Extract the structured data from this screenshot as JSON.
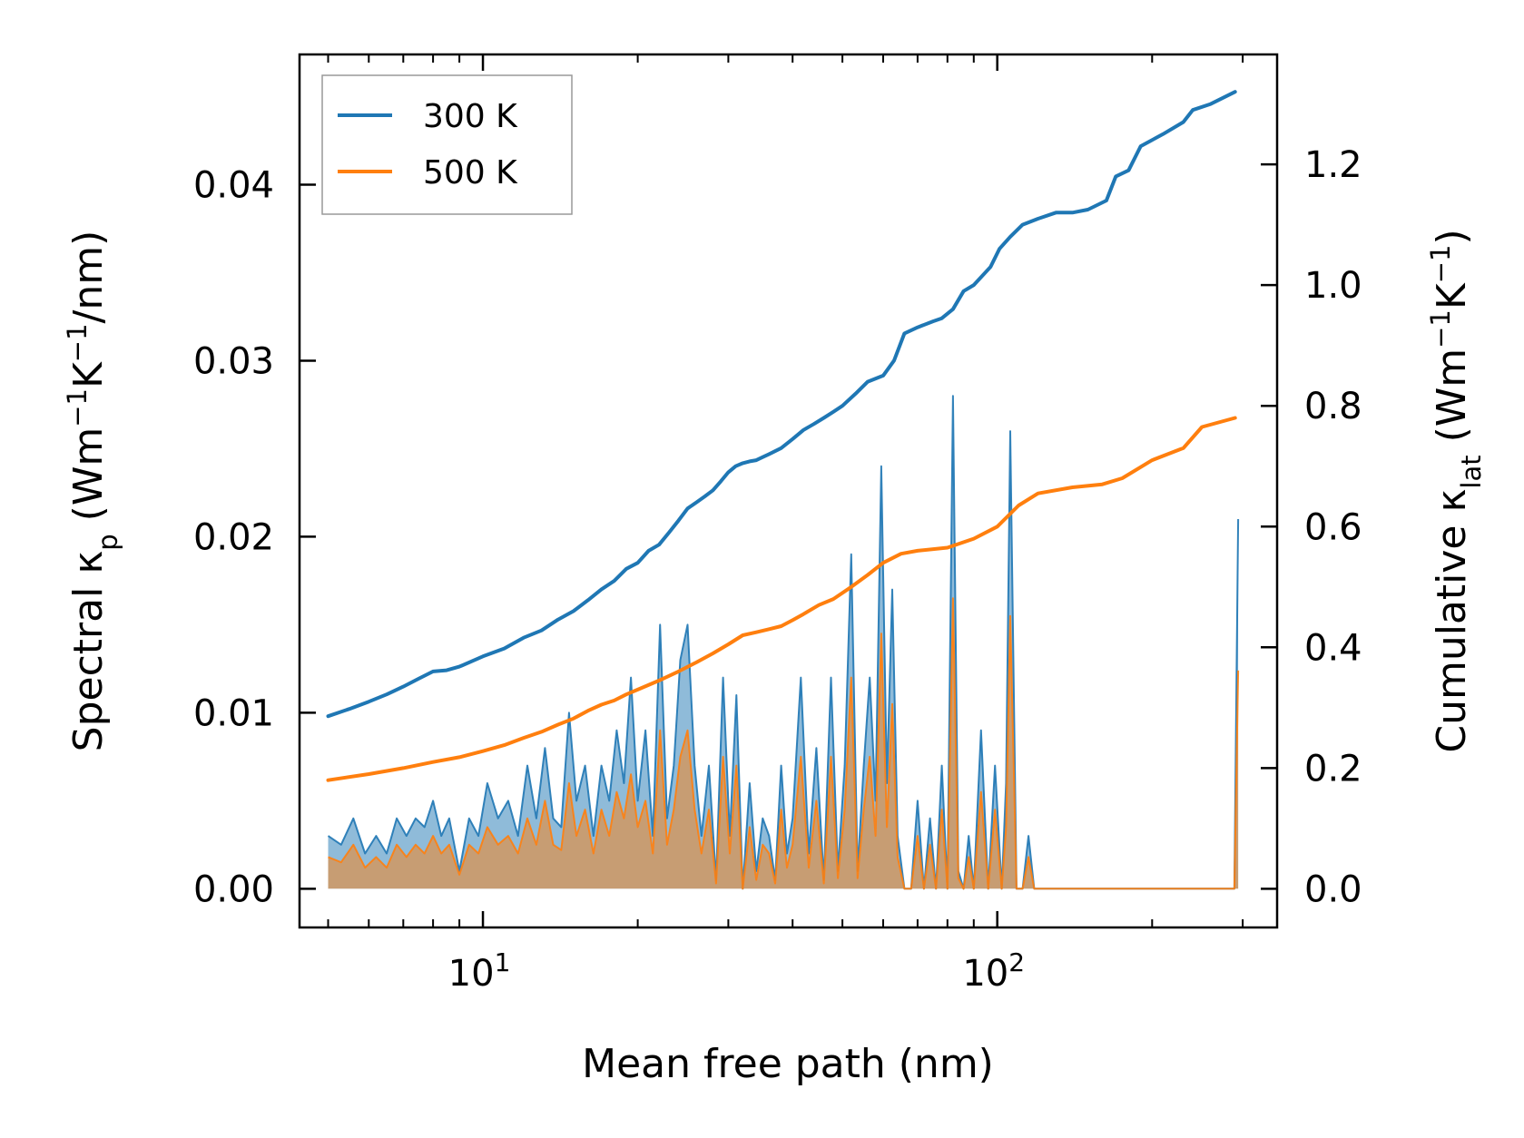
{
  "chart_data": {
    "type": "line",
    "xlabel": "Mean free path (nm)",
    "ylabel_left": {
      "prefix": "Spectral κ",
      "sub": "p",
      "suffix": " (Wm",
      "sup1": "−1",
      "mid": "K",
      "sup2": "−1",
      "end": "/nm)"
    },
    "ylabel_right": {
      "prefix": "Cumulative κ",
      "sub": "lat",
      "suffix": " (Wm",
      "sup1": "−1",
      "mid": "K",
      "sup2": "−1",
      "end": ")"
    },
    "x_scale": "log",
    "xlim": [
      4.4,
      350
    ],
    "x_ticks": [
      {
        "value": 10,
        "base": "10",
        "exp": "1"
      },
      {
        "value": 100,
        "base": "10",
        "exp": "2"
      }
    ],
    "ylim_left": [
      -0.0022,
      0.0474
    ],
    "yticks_left": [
      {
        "value": 0.0,
        "label": "0.00"
      },
      {
        "value": 0.01,
        "label": "0.01"
      },
      {
        "value": 0.02,
        "label": "0.02"
      },
      {
        "value": 0.03,
        "label": "0.03"
      },
      {
        "value": 0.04,
        "label": "0.04"
      }
    ],
    "ylim_right": [
      -0.064,
      1.382
    ],
    "yticks_right": [
      {
        "value": 0.0,
        "label": "0.0"
      },
      {
        "value": 0.2,
        "label": "0.2"
      },
      {
        "value": 0.4,
        "label": "0.4"
      },
      {
        "value": 0.6,
        "label": "0.6"
      },
      {
        "value": 0.8,
        "label": "0.8"
      },
      {
        "value": 1.0,
        "label": "1.0"
      },
      {
        "value": 1.2,
        "label": "1.2"
      }
    ],
    "legend": {
      "position": "top-left",
      "entries": [
        {
          "label": "300 K",
          "color": "#1f77b4"
        },
        {
          "label": "500 K",
          "color": "#ff7f0e"
        }
      ]
    },
    "series": [
      {
        "name": "300 K cumulative",
        "axis": "right",
        "color": "#1f77b4",
        "x": [
          5.0,
          5.5,
          6.0,
          6.5,
          7.0,
          7.5,
          8.0,
          8.5,
          9.0,
          10.0,
          11.0,
          12.0,
          13.0,
          14.0,
          15.0,
          16.0,
          17.0,
          18.0,
          19.0,
          20.0,
          21.0,
          22.0,
          23.0,
          24.0,
          25.0,
          26.0,
          27.0,
          28.0,
          29.0,
          30.0,
          31.0,
          32.0,
          33.0,
          34.0,
          35.0,
          36.0,
          38.0,
          40.0,
          42.0,
          44.0,
          46.0,
          48.0,
          50.0,
          53.0,
          56.0,
          60.0,
          63.0,
          66.0,
          70.0,
          75.0,
          78.0,
          82.0,
          86.0,
          90.0,
          97.0,
          101.0,
          106.0,
          112.0,
          120.0,
          130.0,
          140.0,
          150.0,
          163.0,
          170.0,
          180.0,
          190.0,
          210.0,
          230.0,
          240.0,
          260.0,
          290.0
        ],
        "y": [
          0.286,
          0.298,
          0.31,
          0.322,
          0.335,
          0.348,
          0.36,
          0.362,
          0.368,
          0.385,
          0.398,
          0.416,
          0.428,
          0.446,
          0.46,
          0.478,
          0.496,
          0.51,
          0.53,
          0.54,
          0.56,
          0.57,
          0.59,
          0.61,
          0.63,
          0.64,
          0.65,
          0.66,
          0.675,
          0.69,
          0.7,
          0.705,
          0.708,
          0.71,
          0.715,
          0.72,
          0.73,
          0.745,
          0.76,
          0.77,
          0.78,
          0.79,
          0.8,
          0.82,
          0.84,
          0.85,
          0.875,
          0.92,
          0.93,
          0.94,
          0.945,
          0.96,
          0.99,
          1.0,
          1.03,
          1.06,
          1.08,
          1.1,
          1.11,
          1.12,
          1.12,
          1.125,
          1.14,
          1.18,
          1.19,
          1.23,
          1.25,
          1.27,
          1.29,
          1.3,
          1.32
        ]
      },
      {
        "name": "500 K cumulative",
        "axis": "right",
        "color": "#ff7f0e",
        "x": [
          5.0,
          6.0,
          7.0,
          8.0,
          9.0,
          10.0,
          11.0,
          12.0,
          13.0,
          14.0,
          15.0,
          16.0,
          17.0,
          18.0,
          19.0,
          20.0,
          22.0,
          24.0,
          26.0,
          28.0,
          30.0,
          32.0,
          34.0,
          36.0,
          38.0,
          40.0,
          42.0,
          45.0,
          48.0,
          52.0,
          56.0,
          60.0,
          65.0,
          70.0,
          80.0,
          90.0,
          100.0,
          110.0,
          120.0,
          140.0,
          160.0,
          175.0,
          200.0,
          230.0,
          250.0,
          290.0
        ],
        "y": [
          0.18,
          0.19,
          0.2,
          0.21,
          0.218,
          0.228,
          0.238,
          0.25,
          0.26,
          0.272,
          0.282,
          0.295,
          0.305,
          0.312,
          0.322,
          0.33,
          0.345,
          0.36,
          0.375,
          0.39,
          0.405,
          0.42,
          0.425,
          0.43,
          0.435,
          0.445,
          0.455,
          0.47,
          0.48,
          0.5,
          0.52,
          0.54,
          0.555,
          0.56,
          0.565,
          0.58,
          0.6,
          0.635,
          0.655,
          0.665,
          0.67,
          0.68,
          0.71,
          0.73,
          0.765,
          0.78
        ]
      },
      {
        "name": "300 K spectral",
        "axis": "left",
        "color": "#1f77b4",
        "x": [
          5.0,
          5.3,
          5.6,
          5.9,
          6.2,
          6.5,
          6.8,
          7.1,
          7.4,
          7.7,
          8.0,
          8.3,
          8.6,
          9.0,
          9.4,
          9.8,
          10.2,
          10.7,
          11.2,
          11.7,
          12.2,
          12.7,
          13.2,
          13.7,
          14.2,
          14.7,
          15.2,
          15.8,
          16.4,
          17.0,
          17.6,
          18.2,
          18.8,
          19.4,
          20.0,
          20.7,
          21.4,
          22.1,
          22.8,
          23.5,
          24.2,
          25.0,
          25.8,
          26.6,
          27.5,
          28.4,
          29.3,
          30.2,
          31.1,
          32.0,
          33.0,
          34.0,
          35.0,
          36.0,
          37.0,
          38.0,
          39.0,
          40.0,
          41.5,
          43.0,
          44.5,
          46.0,
          47.5,
          49.0,
          50.5,
          52.0,
          53.5,
          55.0,
          56.5,
          58.0,
          59.5,
          61.0,
          62.5,
          64.0,
          66.0,
          68.0,
          70.0,
          72.0,
          74.0,
          76.0,
          78.0,
          80.0,
          82.0,
          84.0,
          86.0,
          88.0,
          90.0,
          93.0,
          96.0,
          99.0,
          102.0,
          104.0,
          106.0,
          109.0,
          112.0,
          115.0,
          118.0,
          121.0,
          124.0,
          127.0,
          130.0,
          134.0,
          138.0,
          142.0,
          146.0,
          150.0,
          155.0,
          160.0,
          165.0,
          170.0,
          174.0,
          178.0,
          182.0,
          186.0,
          190.0,
          194.0,
          198.0,
          205.0,
          212.0,
          219.0,
          226.0,
          233.0,
          240.0,
          247.0,
          254.0,
          261.0,
          268.0,
          275.0,
          282.0,
          289.0,
          294.0
        ],
        "y": [
          0.003,
          0.0025,
          0.004,
          0.002,
          0.003,
          0.002,
          0.004,
          0.003,
          0.004,
          0.0035,
          0.005,
          0.003,
          0.004,
          0.001,
          0.004,
          0.003,
          0.006,
          0.004,
          0.005,
          0.003,
          0.007,
          0.004,
          0.008,
          0.004,
          0.0035,
          0.01,
          0.005,
          0.007,
          0.003,
          0.007,
          0.005,
          0.009,
          0.006,
          0.012,
          0.005,
          0.009,
          0.003,
          0.015,
          0.004,
          0.007,
          0.013,
          0.015,
          0.007,
          0.003,
          0.007,
          0.0005,
          0.012,
          0.003,
          0.011,
          0.0,
          0.006,
          0.001,
          0.004,
          0.003,
          0.0005,
          0.007,
          0.002,
          0.004,
          0.012,
          0.002,
          0.008,
          0.0005,
          0.012,
          0.001,
          0.007,
          0.019,
          0.001,
          0.007,
          0.012,
          0.005,
          0.024,
          0.006,
          0.017,
          0.003,
          0.0,
          0.0,
          0.005,
          0.0,
          0.004,
          0.0,
          0.007,
          0.0,
          0.028,
          0.001,
          0.0,
          0.003,
          0.0,
          0.009,
          0.0,
          0.007,
          0.0,
          0.006,
          0.026,
          0.0,
          0.0,
          0.003,
          0.0,
          0.0,
          0.0,
          0.0,
          0.0,
          0.0,
          0.0,
          0.0,
          0.0,
          0.0,
          0.0,
          0.0,
          0.0,
          0.0,
          0.0,
          0.0,
          0.0,
          0.0,
          0.0,
          0.0,
          0.0,
          0.0,
          0.0,
          0.0,
          0.0,
          0.0,
          0.0,
          0.0,
          0.0,
          0.0,
          0.0,
          0.0,
          0.0,
          0.0,
          0.021
        ]
      },
      {
        "name": "500 K spectral",
        "axis": "left",
        "color": "#ff7f0e",
        "x": [
          5.0,
          5.3,
          5.6,
          5.9,
          6.2,
          6.5,
          6.8,
          7.1,
          7.4,
          7.7,
          8.0,
          8.3,
          8.6,
          9.0,
          9.4,
          9.8,
          10.2,
          10.7,
          11.2,
          11.7,
          12.2,
          12.7,
          13.2,
          13.7,
          14.2,
          14.7,
          15.2,
          15.8,
          16.4,
          17.0,
          17.6,
          18.2,
          18.8,
          19.4,
          20.0,
          20.7,
          21.4,
          22.1,
          22.8,
          23.5,
          24.2,
          25.0,
          25.8,
          26.6,
          27.5,
          28.4,
          29.3,
          30.2,
          31.1,
          32.0,
          33.0,
          34.0,
          35.0,
          36.0,
          37.0,
          38.0,
          39.0,
          40.0,
          41.5,
          43.0,
          44.5,
          46.0,
          47.5,
          49.0,
          50.5,
          52.0,
          53.5,
          55.0,
          56.5,
          58.0,
          59.5,
          61.0,
          62.5,
          64.0,
          66.0,
          68.0,
          70.0,
          72.0,
          74.0,
          76.0,
          78.0,
          80.0,
          82.0,
          84.0,
          86.0,
          88.0,
          90.0,
          93.0,
          96.0,
          99.0,
          102.0,
          104.0,
          106.0,
          109.0,
          112.0,
          115.0,
          118.0,
          121.0,
          124.0,
          127.0,
          130.0,
          134.0,
          138.0,
          142.0,
          146.0,
          150.0,
          155.0,
          160.0,
          165.0,
          170.0,
          174.0,
          178.0,
          182.0,
          186.0,
          190.0,
          194.0,
          198.0,
          205.0,
          212.0,
          219.0,
          226.0,
          233.0,
          240.0,
          247.0,
          254.0,
          261.0,
          268.0,
          275.0,
          282.0,
          289.0,
          294.0
        ],
        "y": [
          0.0018,
          0.0015,
          0.0025,
          0.0012,
          0.0018,
          0.0012,
          0.0025,
          0.0018,
          0.0025,
          0.002,
          0.003,
          0.002,
          0.0025,
          0.0008,
          0.0025,
          0.002,
          0.0035,
          0.0025,
          0.003,
          0.002,
          0.004,
          0.0025,
          0.005,
          0.0025,
          0.0022,
          0.006,
          0.003,
          0.0045,
          0.002,
          0.0045,
          0.003,
          0.0055,
          0.004,
          0.0065,
          0.0035,
          0.005,
          0.002,
          0.009,
          0.0025,
          0.0045,
          0.0075,
          0.009,
          0.0045,
          0.002,
          0.0045,
          0.0003,
          0.0075,
          0.002,
          0.007,
          0.0,
          0.0035,
          0.0005,
          0.0025,
          0.002,
          0.0003,
          0.0045,
          0.0012,
          0.0025,
          0.0075,
          0.0012,
          0.005,
          0.0003,
          0.0075,
          0.0006,
          0.0045,
          0.012,
          0.0006,
          0.0045,
          0.0075,
          0.003,
          0.0145,
          0.0035,
          0.0105,
          0.0018,
          0.0,
          0.0,
          0.003,
          0.0,
          0.0025,
          0.0,
          0.0045,
          0.0,
          0.0165,
          0.0006,
          0.0,
          0.0018,
          0.0,
          0.0055,
          0.0,
          0.0045,
          0.0,
          0.0035,
          0.0155,
          0.0,
          0.0,
          0.0018,
          0.0,
          0.0,
          0.0,
          0.0,
          0.0,
          0.0,
          0.0,
          0.0,
          0.0,
          0.0,
          0.0,
          0.0,
          0.0,
          0.0,
          0.0,
          0.0,
          0.0,
          0.0,
          0.0,
          0.0,
          0.0,
          0.0,
          0.0,
          0.0,
          0.0,
          0.0,
          0.0,
          0.0,
          0.0,
          0.0,
          0.0,
          0.0,
          0.0,
          0.0,
          0.0124
        ]
      }
    ]
  }
}
